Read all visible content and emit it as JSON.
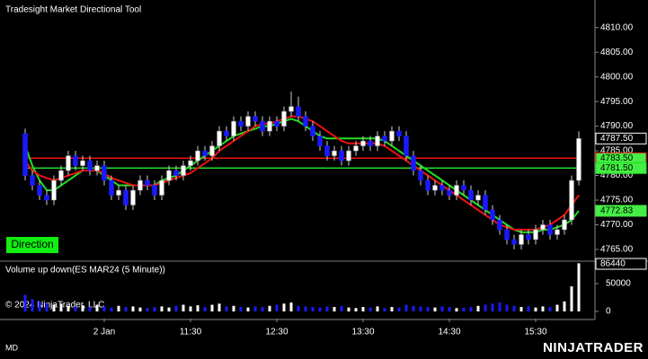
{
  "chart_data": {
    "type": "candlestick",
    "title": "Tradesight Market Directional Tool",
    "badge": "Direction",
    "volume_title": "Volume up down(ES MAR24 (5 Minute))",
    "copyright": "© 2024 NinjaTrader, LLC",
    "status": "MD",
    "brand": "NINJATRADER",
    "up_color": "#ffffff",
    "down_color": "#1a1aff",
    "xlim": [
      -3.5,
      79.25
    ],
    "xticks": [
      {
        "value": 11,
        "label": "2 Jan"
      },
      {
        "value": 23,
        "label": "11:30"
      },
      {
        "value": 35,
        "label": "12:30"
      },
      {
        "value": 47,
        "label": "13:30"
      },
      {
        "value": 59,
        "label": "14:30"
      },
      {
        "value": 71,
        "label": "15:30"
      }
    ],
    "ylim": [
      4762.8,
      4815.6
    ],
    "yticks": [
      {
        "value": 4765,
        "label": "4765.00"
      },
      {
        "value": 4770,
        "label": "4770.00"
      },
      {
        "value": 4775,
        "label": "4775.00"
      },
      {
        "value": 4780,
        "label": "4780.00"
      },
      {
        "value": 4785,
        "label": "4785.00"
      },
      {
        "value": 4790,
        "label": "4790.00"
      },
      {
        "value": 4795,
        "label": "4795.00"
      },
      {
        "value": 4800,
        "label": "4800.00"
      },
      {
        "value": 4805,
        "label": "4805.00"
      },
      {
        "value": 4810,
        "label": "4810.00"
      }
    ],
    "open": [
      4788.5,
      4780,
      4778,
      4776,
      4775,
      4779,
      4781,
      4784,
      4782,
      4783,
      4781,
      4782,
      4779,
      4776,
      4777,
      4774,
      4777,
      4779,
      4778,
      4776,
      4779,
      4781,
      4780,
      4782,
      4783,
      4785,
      4784,
      4786,
      4789,
      4788,
      4791,
      4790,
      4792,
      4791,
      4789,
      4791,
      4790,
      4793,
      4794,
      4792,
      4790,
      4788,
      4786,
      4784,
      4785,
      4783,
      4785,
      4786,
      4787,
      4786,
      4788,
      4787,
      4789,
      4788,
      4784,
      4781,
      4779,
      4777,
      4778,
      4777,
      4776,
      4778,
      4777,
      4775,
      4776,
      4773,
      4771,
      4769,
      4767,
      4766,
      4768,
      4767,
      4769,
      4770,
      4768,
      4769,
      4771,
      4779
    ],
    "high": [
      4789.5,
      4781,
      4779,
      4777,
      4780,
      4782,
      4785,
      4785,
      4784,
      4784,
      4783,
      4783,
      4780,
      4778,
      4778,
      4778,
      4780,
      4780,
      4779,
      4780,
      4782,
      4782,
      4783,
      4784,
      4786,
      4786,
      4787,
      4790,
      4790,
      4792,
      4792,
      4793,
      4793,
      4792,
      4792,
      4792,
      4794,
      4797,
      4796,
      4793,
      4791,
      4789,
      4787,
      4786,
      4786,
      4786,
      4787,
      4788,
      4788,
      4789,
      4789,
      4790,
      4790,
      4789,
      4785,
      4782,
      4780,
      4779,
      4779,
      4778,
      4779,
      4779,
      4778,
      4777,
      4777,
      4774,
      4772,
      4770,
      4768,
      4769,
      4769,
      4770,
      4771,
      4771,
      4770,
      4772,
      4780,
      4789
    ],
    "low": [
      4779,
      4777,
      4775,
      4774,
      4774,
      4778,
      4780,
      4781,
      4781,
      4780,
      4780,
      4778,
      4775,
      4775,
      4773,
      4773,
      4776,
      4777,
      4775,
      4775,
      4778,
      4779,
      4779,
      4781,
      4782,
      4783,
      4783,
      4785,
      4787,
      4787,
      4789,
      4789,
      4790,
      4788,
      4788,
      4789,
      4789,
      4792,
      4791,
      4789,
      4787,
      4785,
      4783,
      4783,
      4782,
      4782,
      4784,
      4785,
      4785,
      4785,
      4786,
      4786,
      4787,
      4783,
      4780,
      4778,
      4776,
      4776,
      4776,
      4775,
      4775,
      4776,
      4774,
      4774,
      4772,
      4770,
      4768,
      4766,
      4765,
      4765,
      4766,
      4766,
      4768,
      4767,
      4767,
      4768,
      4770,
      4778
    ],
    "close": [
      4780,
      4778,
      4776,
      4775,
      4779,
      4781,
      4784,
      4782,
      4783,
      4781,
      4782,
      4779,
      4776,
      4777,
      4774,
      4777,
      4779,
      4778,
      4776,
      4779,
      4781,
      4780,
      4782,
      4783,
      4785,
      4784,
      4786,
      4789,
      4788,
      4791,
      4790,
      4792,
      4791,
      4789,
      4791,
      4790,
      4793,
      4794,
      4792,
      4790,
      4788,
      4786,
      4784,
      4785,
      4783,
      4785,
      4786,
      4787,
      4786,
      4788,
      4787,
      4789,
      4788,
      4784,
      4781,
      4779,
      4777,
      4778,
      4777,
      4776,
      4778,
      4777,
      4775,
      4776,
      4773,
      4771,
      4769,
      4767,
      4766,
      4768,
      4767,
      4769,
      4770,
      4768,
      4769,
      4771,
      4779,
      4787.5
    ],
    "close_label": "4787.50",
    "red_line": {
      "color": "#ee1111",
      "values": [
        4783,
        4781,
        4780,
        4779.5,
        4779,
        4779.5,
        4780,
        4780.5,
        4781,
        4781,
        4781,
        4780.5,
        4779.5,
        4779,
        4778.5,
        4778,
        4778,
        4778,
        4778,
        4778.5,
        4779,
        4779.5,
        4780,
        4780.5,
        4781.5,
        4782.5,
        4783.5,
        4785,
        4786,
        4787,
        4788,
        4789,
        4790,
        4790.5,
        4790.5,
        4791,
        4791.5,
        4792,
        4792,
        4791.5,
        4791,
        4790,
        4789,
        4788,
        4787,
        4786.5,
        4786.5,
        4786.5,
        4786.5,
        4786.5,
        4786,
        4785,
        4784,
        4783,
        4782,
        4781,
        4780,
        4779,
        4778,
        4777,
        4776,
        4775,
        4774,
        4773,
        4772,
        4771,
        4770,
        4769.5,
        4769,
        4769,
        4769,
        4769,
        4769.5,
        4770,
        4771,
        4772,
        4774,
        4776
      ]
    },
    "green_line": {
      "color": "#22dd22",
      "end_label": "4772.83",
      "values": [
        4786,
        4782,
        4779,
        4777,
        4777,
        4778,
        4779,
        4780,
        4781,
        4781,
        4781,
        4780,
        4779,
        4778,
        4778,
        4778,
        4778,
        4778,
        4778,
        4779,
        4779.5,
        4780,
        4781,
        4782,
        4783,
        4784,
        4785,
        4786,
        4787,
        4788,
        4788.5,
        4789,
        4789.5,
        4790,
        4790,
        4790.5,
        4791,
        4791.5,
        4791,
        4790,
        4789,
        4788,
        4787.5,
        4787.5,
        4787.5,
        4787.5,
        4787.5,
        4787.5,
        4787.5,
        4787.5,
        4787,
        4786,
        4785,
        4784,
        4783,
        4782,
        4781,
        4780,
        4779,
        4778,
        4777,
        4776,
        4775,
        4774,
        4773,
        4772,
        4771,
        4770,
        4769,
        4768.5,
        4768.5,
        4768.5,
        4769,
        4769,
        4769.5,
        4770,
        4771,
        4772.83
      ]
    },
    "levels": [
      {
        "value": 4783.5,
        "label": "4783.50",
        "color": "#ee1111"
      },
      {
        "value": 4781.5,
        "label": "4781.50",
        "color": "#22dd22"
      }
    ],
    "volume": {
      "ylim": [
        -12900,
        88700
      ],
      "yticks": [
        0,
        50000
      ],
      "values": [
        30000,
        22000,
        18000,
        15000,
        12000,
        14000,
        10000,
        9000,
        11000,
        8000,
        12000,
        9000,
        7000,
        10000,
        8000,
        9000,
        7000,
        6000,
        8000,
        9000,
        7000,
        10000,
        12000,
        9000,
        11000,
        8000,
        12000,
        14000,
        9000,
        10000,
        8000,
        7000,
        9000,
        8000,
        10000,
        12000,
        14000,
        16000,
        10000,
        9000,
        8000,
        7000,
        9000,
        8000,
        10000,
        7000,
        6000,
        8000,
        7000,
        9000,
        6000,
        8000,
        7000,
        12000,
        10000,
        9000,
        8000,
        7000,
        9000,
        8000,
        6000,
        7000,
        8000,
        10000,
        12000,
        14000,
        16000,
        12000,
        10000,
        8000,
        9000,
        7000,
        9000,
        8000,
        12000,
        18000,
        45000,
        86440
      ]
    }
  }
}
